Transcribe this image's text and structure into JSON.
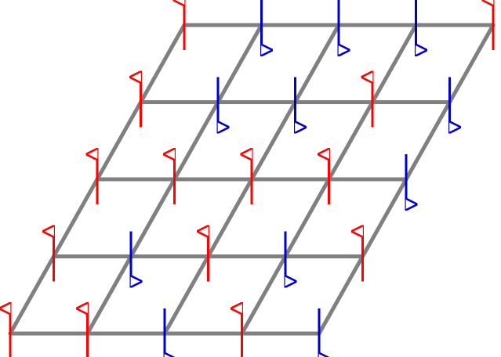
{
  "lattice": {
    "rows": 5,
    "cols": 5,
    "grid_color": "#808080",
    "up_color": "#ff0000",
    "down_color": "#0000cc",
    "spins": [
      [
        "up",
        "up",
        "down",
        "up",
        "down"
      ],
      [
        "up",
        "down",
        "up",
        "down",
        "up"
      ],
      [
        "up",
        "up",
        "up",
        "up",
        "down"
      ],
      [
        "up",
        "down",
        "down",
        "up",
        "down"
      ],
      [
        "up",
        "down",
        "down",
        "down",
        "up"
      ]
    ]
  }
}
